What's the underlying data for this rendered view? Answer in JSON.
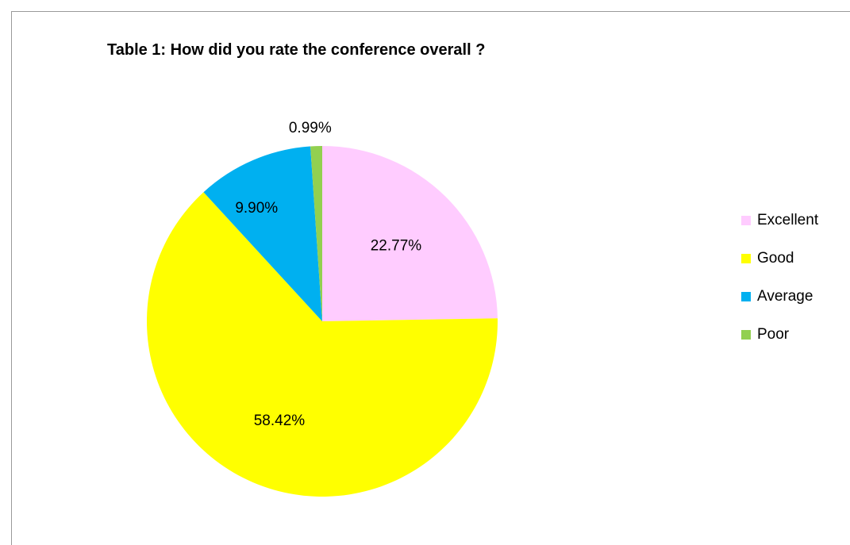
{
  "chart_data": {
    "type": "pie",
    "title": "Table 1: How did you rate the conference overall ?",
    "categories": [
      "Excellent",
      "Good",
      "Average",
      "Poor"
    ],
    "values": [
      22.77,
      58.42,
      9.9,
      0.99
    ],
    "value_labels": [
      "22.77%",
      "58.42%",
      "9.90%",
      "0.99%"
    ],
    "colors": [
      "#FFCCFF",
      "#FFFF00",
      "#00B0F0",
      "#92D050"
    ],
    "legend_position": "right"
  }
}
